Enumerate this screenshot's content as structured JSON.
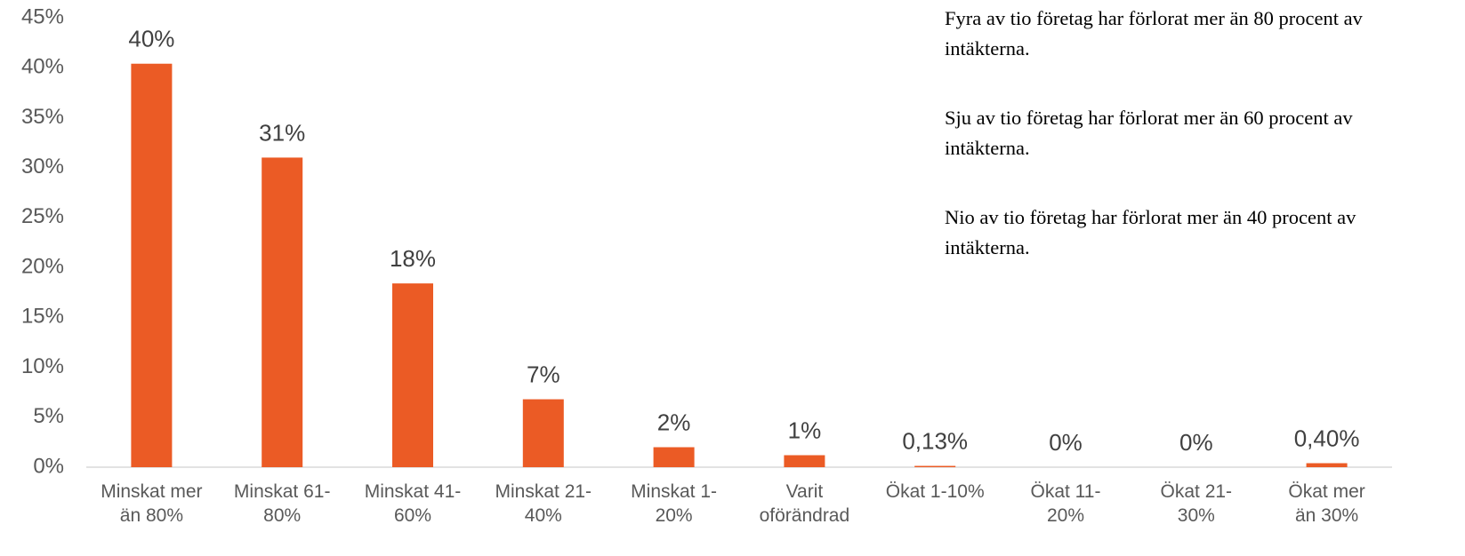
{
  "chart_data": {
    "type": "bar",
    "categories": [
      "Minskat mer\nän 80%",
      "Minskat 61-\n80%",
      "Minskat 41-\n60%",
      "Minskat 21-\n40%",
      "Minskat 1-\n20%",
      "Varit\noförändrad",
      "Ökat 1-10%",
      "Ökat 11-\n20%",
      "Ökat 21-\n30%",
      "Ökat mer\nän 30%"
    ],
    "values": [
      40.4,
      31,
      18.4,
      6.8,
      2,
      1.2,
      0.13,
      0,
      0,
      0.4
    ],
    "value_labels": [
      "40%",
      "31%",
      "18%",
      "7%",
      "2%",
      "1%",
      "0,13%",
      "0%",
      "0%",
      "0,40%"
    ],
    "color": "#eb5b25",
    "ylim": [
      0,
      45
    ],
    "yticks": [
      {
        "value": 0,
        "label": "0%"
      },
      {
        "value": 5,
        "label": "5%"
      },
      {
        "value": 10,
        "label": "10%"
      },
      {
        "value": 15,
        "label": "15%"
      },
      {
        "value": 20,
        "label": "20%"
      },
      {
        "value": 25,
        "label": "25%"
      },
      {
        "value": 30,
        "label": "30%"
      },
      {
        "value": 35,
        "label": "35%"
      },
      {
        "value": 40,
        "label": "40%"
      },
      {
        "value": 45,
        "label": "45%"
      }
    ],
    "annotations": [
      "Fyra av tio företag har förlorat mer än 80 procent av intäkterna.",
      "Sju av tio företag har förlorat mer än 60 procent av intäkterna.",
      "Nio av tio företag har förlorat mer än 40 procent av intäkterna."
    ]
  }
}
